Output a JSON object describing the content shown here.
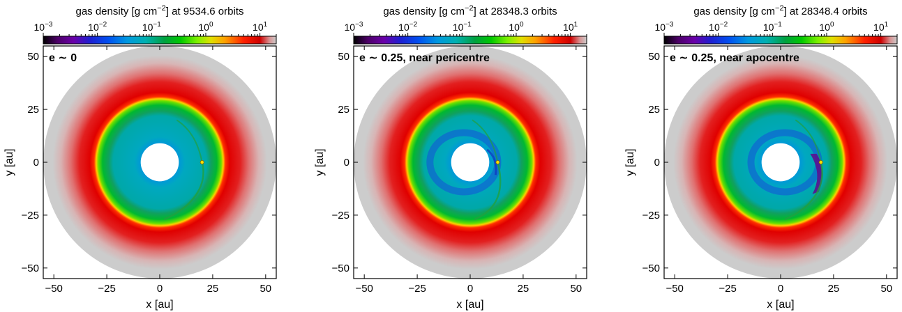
{
  "chart_data": [
    {
      "type": "heatmap",
      "title": "gas density [g cm−2] at 9534.6 orbits",
      "annotation": "e ∼ 0",
      "xlabel": "x [au]",
      "ylabel": "y [au]",
      "xlim": [
        -55,
        55
      ],
      "ylim": [
        -55,
        55
      ],
      "x_ticks": [
        -50,
        -25,
        0,
        25,
        50
      ],
      "y_ticks": [
        -50,
        -25,
        0,
        25,
        50
      ],
      "colorbar": {
        "scale": "log",
        "range": [
          0.001,
          20
        ],
        "ticks": [
          "10−3",
          "10−2",
          "10−1",
          "100",
          "101"
        ]
      },
      "disc": {
        "inner_edge_au": 9,
        "outer_edge_au": 55,
        "ring_peak_au": 33,
        "ring_inner_au": 30,
        "planet_x_au": 20,
        "planet_y_au": 0,
        "cavity_eccentricity": 0
      }
    },
    {
      "type": "heatmap",
      "title": "gas density [g cm−2] at 28348.3 orbits",
      "annotation": "e ∼ 0.25, near pericentre",
      "xlabel": "x [au]",
      "ylabel": "y [au]",
      "xlim": [
        -55,
        55
      ],
      "ylim": [
        -55,
        55
      ],
      "x_ticks": [
        -50,
        -25,
        0,
        25,
        50
      ],
      "y_ticks": [
        -50,
        -25,
        0,
        25,
        50
      ],
      "colorbar": {
        "scale": "log",
        "range": [
          0.001,
          20
        ],
        "ticks": [
          "10−3",
          "10−2",
          "10−1",
          "100",
          "101"
        ]
      },
      "disc": {
        "inner_edge_au": 9,
        "outer_edge_au": 55,
        "ring_peak_au": 33,
        "ring_inner_au": 30,
        "planet_x_au": 13,
        "planet_y_au": 0,
        "cavity_eccentricity": 0.25
      }
    },
    {
      "type": "heatmap",
      "title": "gas density [g cm−2] at 28348.4 orbits",
      "annotation": "e ∼ 0.25, near apocentre",
      "xlabel": "x [au]",
      "ylabel": "y [au]",
      "xlim": [
        -55,
        55
      ],
      "ylim": [
        -55,
        55
      ],
      "x_ticks": [
        -50,
        -25,
        0,
        25,
        50
      ],
      "y_ticks": [
        -50,
        -25,
        0,
        25,
        50
      ],
      "colorbar": {
        "scale": "log",
        "range": [
          0.001,
          20
        ],
        "ticks": [
          "10−3",
          "10−2",
          "10−1",
          "100",
          "101"
        ]
      },
      "disc": {
        "inner_edge_au": 9,
        "outer_edge_au": 55,
        "ring_peak_au": 33,
        "ring_inner_au": 30,
        "planet_x_au": 19,
        "planet_y_au": 0,
        "cavity_eccentricity": 0.25
      }
    }
  ]
}
